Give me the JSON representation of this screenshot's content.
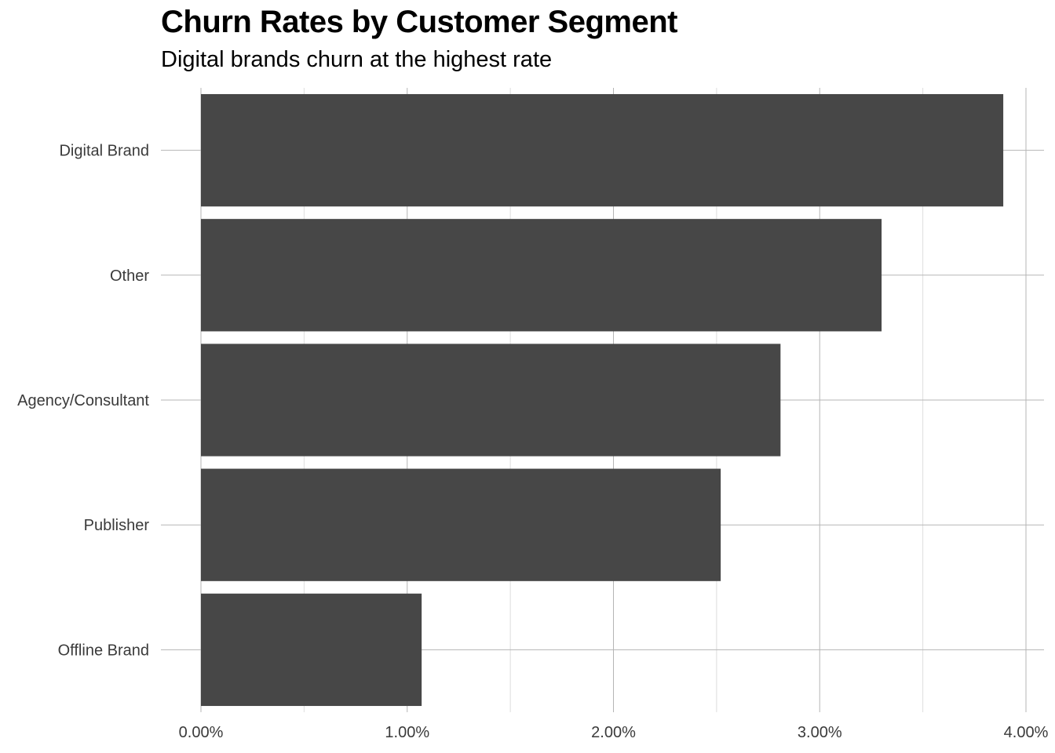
{
  "chart_data": {
    "type": "bar",
    "orientation": "horizontal",
    "title": "Churn Rates by Customer Segment",
    "subtitle": "Digital brands churn at the highest rate",
    "xlabel": "",
    "ylabel": "",
    "categories": [
      "Digital Brand",
      "Other",
      "Agency/Consultant",
      "Publisher",
      "Offline Brand"
    ],
    "values": [
      3.89,
      3.3,
      2.81,
      2.52,
      1.07
    ],
    "value_unit": "%",
    "xlim": [
      0,
      4
    ],
    "x_ticks": [
      0,
      1,
      2,
      3,
      4
    ],
    "x_tick_labels": [
      "0.00%",
      "1.00%",
      "2.00%",
      "3.00%",
      "4.00%"
    ],
    "grid": true,
    "legend": "none",
    "bar_color": "#474747"
  }
}
